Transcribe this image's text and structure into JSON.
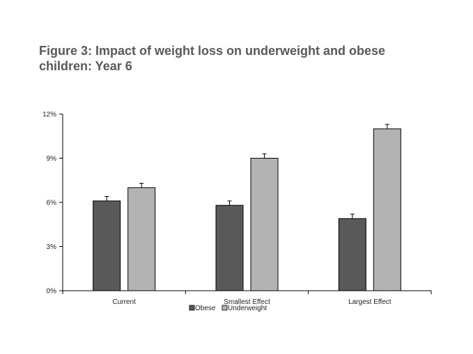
{
  "title_line1": "Figure 3: Impact of weight loss on underweight and obese",
  "title_line2": "children: Year 6",
  "chart_data": {
    "type": "bar",
    "title": "Figure 3: Impact of weight loss on underweight and obese children: Year 6",
    "xlabel": "",
    "ylabel": "",
    "categories": [
      "Current",
      "Smallest Effect",
      "Largest Effect"
    ],
    "series": [
      {
        "name": "Obese",
        "values": [
          6.1,
          5.8,
          4.9
        ],
        "error": [
          0.3,
          0.3,
          0.3
        ],
        "color": "#595959"
      },
      {
        "name": "Underweight",
        "values": [
          7.0,
          9.0,
          11.0
        ],
        "error": [
          0.3,
          0.3,
          0.3
        ],
        "color": "#b3b3b3"
      }
    ],
    "ylim": [
      0,
      12
    ],
    "yticks": [
      0,
      3,
      6,
      9,
      12
    ],
    "ytick_labels": [
      "0%",
      "3%",
      "6%",
      "9%",
      "12%"
    ],
    "grid": false,
    "legend": "bottom"
  }
}
